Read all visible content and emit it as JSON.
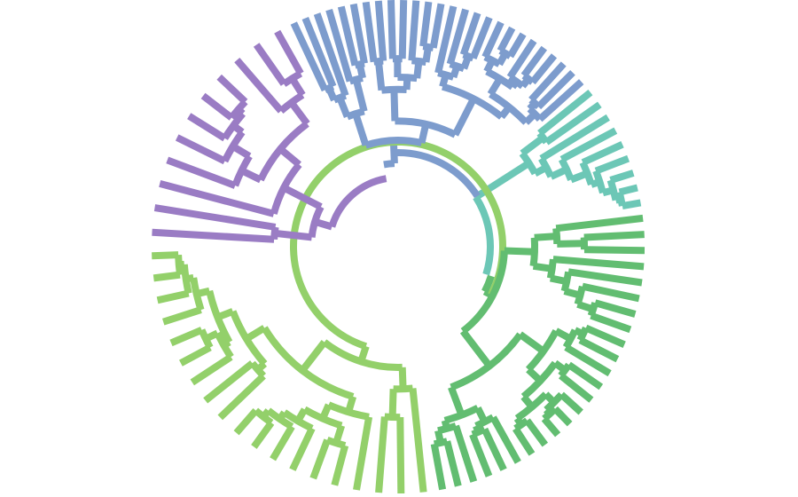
{
  "diagram": {
    "type": "radial-dendrogram",
    "background": "#ffffff",
    "clades": [
      {
        "name": "purple",
        "color": "#9a7cc4",
        "leaf_count": 11
      },
      {
        "name": "blue",
        "color": "#7d9ccd",
        "leaf_count": 26
      },
      {
        "name": "teal",
        "color": "#6cc7b6",
        "leaf_count": 9
      },
      {
        "name": "green",
        "color": "#62bd71",
        "leaf_count": 24
      },
      {
        "name": "lime",
        "color": "#93d06a",
        "leaf_count": 19
      }
    ]
  }
}
